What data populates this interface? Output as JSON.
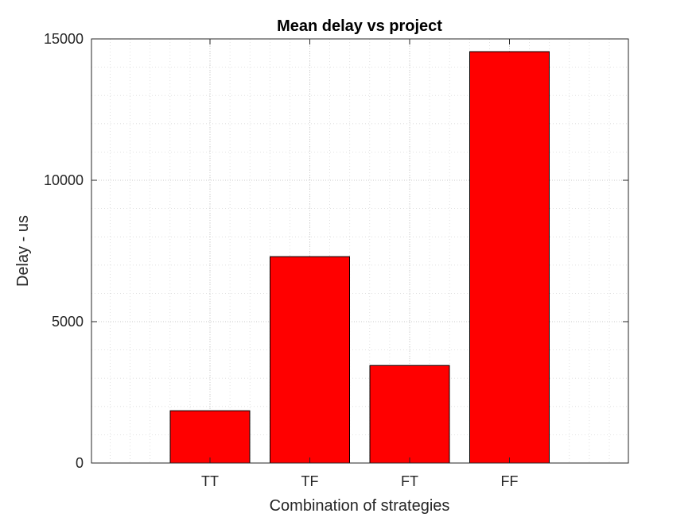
{
  "chart_data": {
    "type": "bar",
    "title": "Mean delay vs project",
    "xlabel": "Combination of strategies",
    "ylabel": "Delay - us",
    "categories": [
      "TT",
      "TF",
      "FT",
      "FF"
    ],
    "values": [
      1850,
      7300,
      3450,
      14550
    ],
    "ylim": [
      0,
      15000
    ],
    "yticks": [
      0,
      5000,
      10000,
      15000
    ],
    "grid": true,
    "minor_grid": true,
    "legend": "none",
    "bar_color": "#ff0000",
    "bar_edge_color": "#000000"
  }
}
